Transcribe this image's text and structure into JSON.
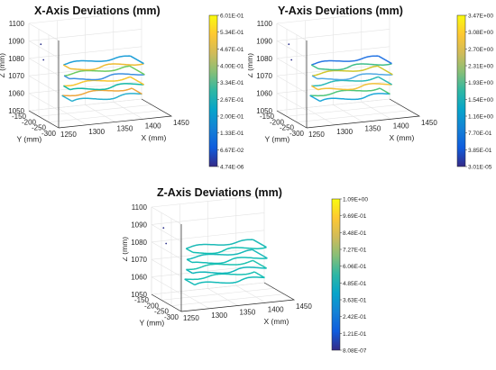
{
  "chart_data": [
    {
      "type": "line",
      "title": "X-Axis Deviations (mm)",
      "xlabel": "X (mm)",
      "ylabel": "Y (mm)",
      "zlabel": "Z (mm)",
      "x_ticks": [
        "1250",
        "1300",
        "1350",
        "1400",
        "1450"
      ],
      "y_ticks": [
        "-150",
        "-200",
        "-250",
        "-300"
      ],
      "z_ticks": [
        "1050",
        "1060",
        "1070",
        "1080",
        "1090",
        "1100"
      ],
      "xlim": [
        1250,
        1450
      ],
      "ylim": [
        -300,
        -150
      ],
      "zlim": [
        1050,
        1100
      ],
      "grid": true,
      "layer_z": [
        1060,
        1066,
        1072,
        1078
      ],
      "colorbar": {
        "colormap": "parula",
        "ticks": [
          "6.01E-01",
          "5.34E-01",
          "4.67E-01",
          "4.00E-01",
          "3.34E-01",
          "2.67E-01",
          "2.00E-01",
          "1.33E-01",
          "6.67E-02",
          "4.74E-06"
        ],
        "range": [
          4.74e-06,
          0.601
        ]
      },
      "scale": 0.601,
      "colors": [
        "#2bb0cf",
        "#eea63c",
        "#12b8a6",
        "#f6c52f",
        "#3d8fe0",
        "#6ccb5f",
        "#eebb32",
        "#1f9fd8"
      ]
    },
    {
      "type": "line",
      "title": "Y-Axis Deviations (mm)",
      "xlabel": "X (mm)",
      "ylabel": "Y (mm)",
      "zlabel": "Z (mm)",
      "x_ticks": [
        "1250",
        "1300",
        "1350",
        "1400",
        "1450"
      ],
      "y_ticks": [
        "-150",
        "-200",
        "-250",
        "-300"
      ],
      "z_ticks": [
        "1050",
        "1060",
        "1070",
        "1080",
        "1090",
        "1100"
      ],
      "xlim": [
        1250,
        1450
      ],
      "ylim": [
        -300,
        -150
      ],
      "zlim": [
        1050,
        1100
      ],
      "grid": true,
      "layer_z": [
        1060,
        1066,
        1072,
        1078
      ],
      "colorbar": {
        "colormap": "parula",
        "ticks": [
          "3.47E+00",
          "3.08E+00",
          "2.70E+00",
          "2.31E+00",
          "1.93E+00",
          "1.54E+00",
          "1.16E+00",
          "7.70E-01",
          "3.85E-01",
          "3.01E-05"
        ],
        "range": [
          3.01e-05,
          3.47
        ]
      },
      "scale": 3.47,
      "colors": [
        "#1da7d9",
        "#4ec67a",
        "#f3c139",
        "#2ab9b8",
        "#52a9e4",
        "#cfc72e",
        "#3fbe8a",
        "#2877e4"
      ]
    },
    {
      "type": "line",
      "title": "Z-Axis Deviations (mm)",
      "xlabel": "X (mm)",
      "ylabel": "Y (mm)",
      "zlabel": "Z (mm)",
      "x_ticks": [
        "1250",
        "1300",
        "1350",
        "1400",
        "1450"
      ],
      "y_ticks": [
        "-150",
        "-200",
        "-250",
        "-300"
      ],
      "z_ticks": [
        "1050",
        "1060",
        "1070",
        "1080",
        "1090",
        "1100"
      ],
      "xlim": [
        1250,
        1450
      ],
      "ylim": [
        -300,
        -150
      ],
      "zlim": [
        1050,
        1100
      ],
      "grid": true,
      "layer_z": [
        1060,
        1066,
        1072,
        1078
      ],
      "colorbar": {
        "colormap": "parula",
        "ticks": [
          "1.09E+00",
          "9.69E-01",
          "8.48E-01",
          "7.27E-01",
          "6.06E-01",
          "4.85E-01",
          "3.63E-01",
          "2.42E-01",
          "1.21E-01",
          "8.08E-07"
        ],
        "range": [
          8.08e-07,
          1.09
        ]
      },
      "scale": 1.09,
      "colors": [
        "#14bbb8",
        "#19c0b4",
        "#11b7bb",
        "#1dc2b0",
        "#15bdb6",
        "#18b9b9",
        "#12bfb3",
        "#1cbab7"
      ]
    }
  ]
}
